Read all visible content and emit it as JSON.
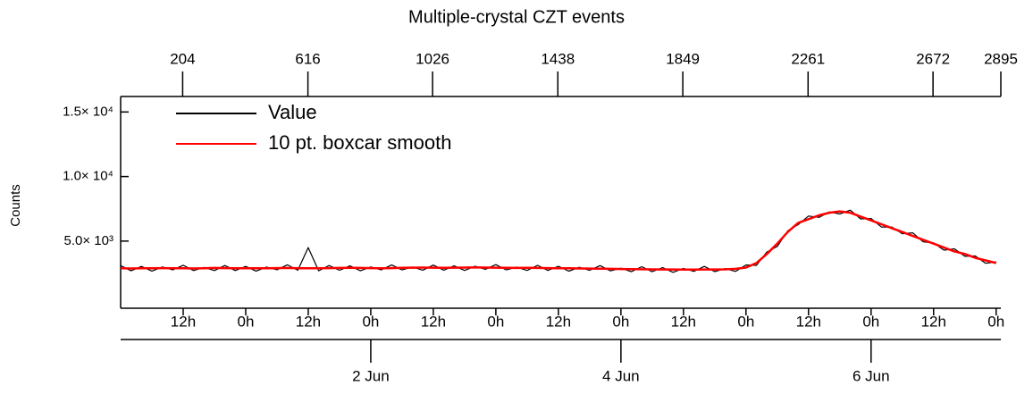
{
  "chart_data": {
    "type": "line",
    "title": "Multiple-crystal CZT events",
    "y_label": "Counts",
    "x": [
      0,
      2,
      4,
      6,
      8,
      10,
      12,
      14,
      16,
      18,
      20,
      22,
      24,
      26,
      28,
      30,
      32,
      34,
      36,
      38,
      40,
      42,
      44,
      46,
      48,
      50,
      52,
      54,
      56,
      58,
      60,
      62,
      64,
      66,
      68,
      70,
      72,
      74,
      76,
      78,
      80,
      82,
      84,
      86,
      88,
      90,
      92,
      94,
      96,
      98,
      100,
      102,
      104,
      106,
      108,
      110,
      112,
      114,
      116,
      118,
      120,
      122,
      124,
      126,
      128,
      130,
      132,
      134,
      136,
      138,
      140,
      142,
      144,
      146,
      148,
      150,
      152,
      154,
      156,
      158,
      160,
      162,
      164,
      166,
      168
    ],
    "series": [
      {
        "name": "Value",
        "color": "#000000",
        "values": [
          3100,
          2700,
          3040,
          2680,
          3000,
          2770,
          3130,
          2720,
          2960,
          2720,
          3110,
          2720,
          3040,
          2680,
          2990,
          2780,
          3160,
          2740,
          4500,
          2700,
          3110,
          2740,
          3080,
          2700,
          3000,
          2770,
          3150,
          2770,
          3000,
          2750,
          3140,
          2750,
          3090,
          2730,
          3050,
          2820,
          3180,
          2770,
          2980,
          2730,
          3120,
          2730,
          3050,
          2670,
          2970,
          2740,
          3100,
          2690,
          2900,
          2630,
          3020,
          2630,
          2950,
          2580,
          2880,
          2660,
          3040,
          2640,
          2870,
          2650,
          3150,
          3120,
          4150,
          4580,
          5790,
          6270,
          6940,
          6840,
          7260,
          7100,
          7400,
          6720,
          6750,
          6080,
          6090,
          5570,
          5640,
          4940,
          4860,
          4300,
          4400,
          3820,
          3850,
          3280,
          3390
        ]
      },
      {
        "name": "10 pt. boxcar smooth",
        "color": "#ff0000",
        "values": [
          2900,
          2880,
          2890,
          2900,
          2910,
          2900,
          2890,
          2880,
          2900,
          2920,
          2910,
          2900,
          2890,
          2900,
          2900,
          2910,
          2920,
          2900,
          2890,
          2900,
          2910,
          2920,
          2930,
          2920,
          2910,
          2900,
          2910,
          2930,
          2940,
          2950,
          2940,
          2930,
          2940,
          2950,
          2960,
          2950,
          2940,
          2930,
          2920,
          2930,
          2920,
          2910,
          2900,
          2890,
          2880,
          2870,
          2860,
          2850,
          2840,
          2830,
          2820,
          2810,
          2800,
          2800,
          2790,
          2790,
          2800,
          2800,
          2810,
          2850,
          2950,
          3300,
          4000,
          4800,
          5700,
          6400,
          6700,
          7000,
          7200,
          7300,
          7200,
          6900,
          6600,
          6300,
          6000,
          5700,
          5400,
          5100,
          4800,
          4500,
          4200,
          4000,
          3700,
          3500,
          3300
        ]
      }
    ],
    "xlim": [
      0,
      168.9
    ],
    "xticks": [
      {
        "value": 12,
        "label": "12h"
      },
      {
        "value": 24,
        "label": "0h"
      },
      {
        "value": 36,
        "label": "12h"
      },
      {
        "value": 48,
        "label": "0h"
      },
      {
        "value": 60,
        "label": "12h"
      },
      {
        "value": 72,
        "label": "0h"
      },
      {
        "value": 84,
        "label": "12h"
      },
      {
        "value": 96,
        "label": "0h"
      },
      {
        "value": 108,
        "label": "12h"
      },
      {
        "value": 120,
        "label": "0h"
      },
      {
        "value": 132,
        "label": "12h"
      },
      {
        "value": 144,
        "label": "0h"
      },
      {
        "value": 156,
        "label": "12h"
      },
      {
        "value": 168,
        "label": "0h"
      }
    ],
    "date_ticks": [
      {
        "value": 48,
        "label": "2 Jun"
      },
      {
        "value": 96,
        "label": "4 Jun"
      },
      {
        "value": 144,
        "label": "6 Jun"
      }
    ],
    "x2lim": [
      0,
      2895
    ],
    "x2ticks": [
      204,
      616,
      1026,
      1438,
      1849,
      2261,
      2672,
      2895
    ],
    "ylim": [
      -200,
      16200
    ],
    "yticks": [
      {
        "value": 5000,
        "label": "5.0× 10³"
      },
      {
        "value": 10000,
        "label": "1.0× 10⁴"
      },
      {
        "value": 15000,
        "label": "1.5× 10⁴"
      }
    ],
    "legend": "upper left"
  }
}
